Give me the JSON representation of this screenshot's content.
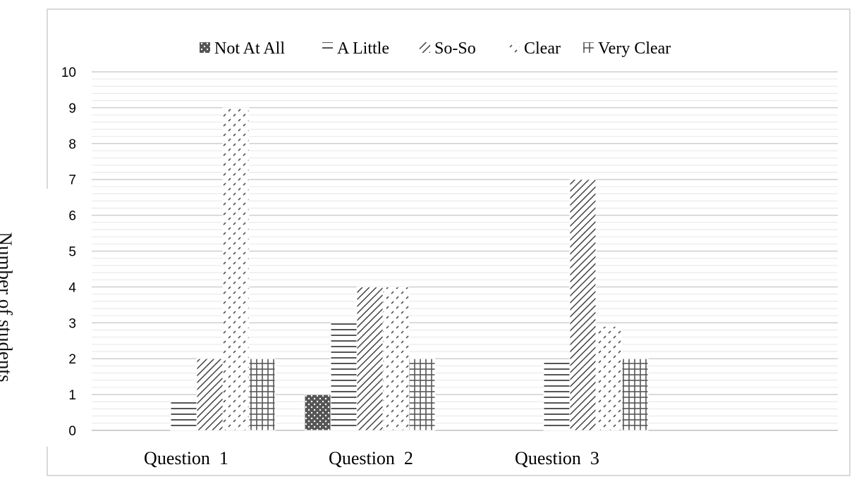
{
  "chart_data": {
    "type": "bar",
    "title": "",
    "xlabel": "",
    "ylabel": "Number of students",
    "ylim": [
      0,
      10
    ],
    "yticks": [
      0,
      1,
      2,
      3,
      4,
      5,
      6,
      7,
      8,
      9,
      10
    ],
    "categories": [
      "Question  1",
      "Question  2",
      "Question  3"
    ],
    "legend_position": "top-center",
    "grid": true,
    "series": [
      {
        "name": "Not At All",
        "pattern": "dots",
        "color": "#555555",
        "values": [
          0,
          1,
          0
        ]
      },
      {
        "name": "A Little",
        "pattern": "horizontal-lines",
        "color": "#555555",
        "values": [
          0.9,
          3,
          1.9
        ]
      },
      {
        "name": "So-So",
        "pattern": "diagonal-lines",
        "color": "#555555",
        "values": [
          2,
          4,
          7
        ]
      },
      {
        "name": "Clear",
        "pattern": "sparse-diagonal-dots",
        "color": "#555555",
        "values": [
          9,
          4,
          2.9
        ]
      },
      {
        "name": "Very Clear",
        "pattern": "grid",
        "color": "#555555",
        "values": [
          2,
          2,
          2
        ]
      }
    ]
  }
}
